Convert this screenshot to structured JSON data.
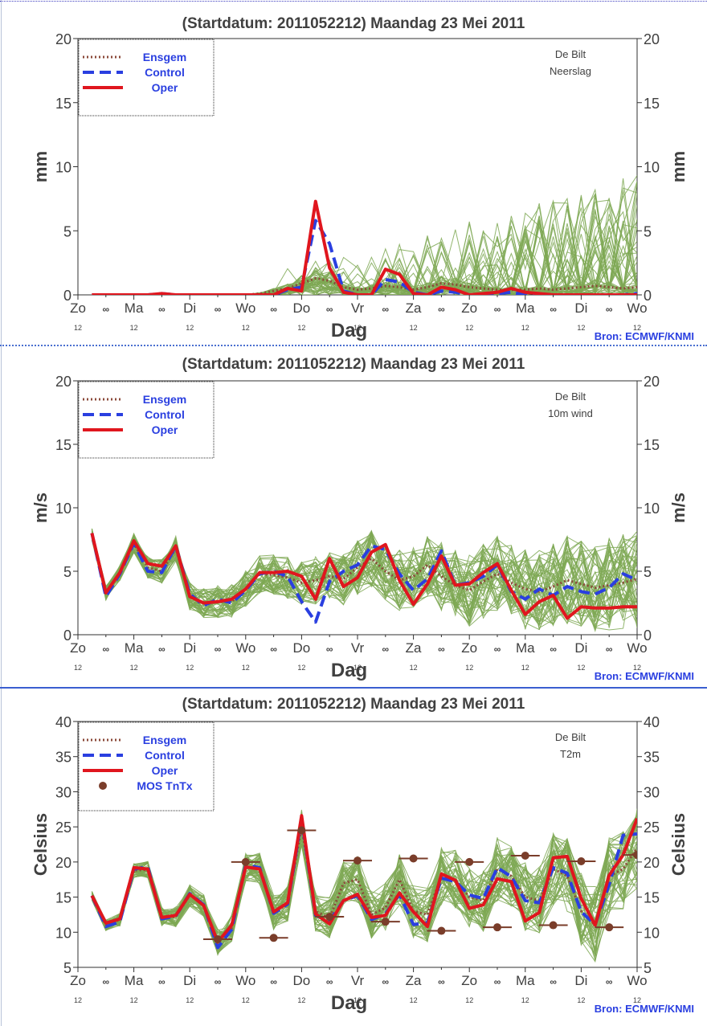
{
  "colors": {
    "ensemble": "#7ea854",
    "ensgem": "#8b4a3a",
    "control": "#2a3fe0",
    "oper": "#e0161e",
    "mos": "#7a3d2a",
    "axis_text": "#404040",
    "source": "#2a3fe0"
  },
  "chart_data": [
    {
      "type": "line",
      "title": "(Startdatum: 2011052212)   Maandag   23 Mei        2011",
      "station": "De Bilt",
      "variable": "Neerslag",
      "xlabel": "Dag",
      "ylabel": "mm",
      "ylim": [
        0,
        20
      ],
      "yticks": [
        0,
        5,
        10,
        15,
        20
      ],
      "source": "Bron: ECMWF/KNMI",
      "legend_position": "top-left",
      "legend": [
        "Ensgem",
        "Control",
        "Oper"
      ],
      "day_labels": [
        "Zo",
        "∞",
        "Ma",
        "∞",
        "Di",
        "∞",
        "Wo",
        "∞",
        "Do",
        "∞",
        "Vr",
        "∞",
        "Za",
        "∞",
        "Zo",
        "∞",
        "Ma",
        "∞",
        "Di",
        "∞",
        "Wo"
      ],
      "hour_labels": [
        "12",
        "12",
        "12",
        "12",
        "12",
        "12",
        "12",
        "12",
        "12",
        "12",
        "12"
      ],
      "x": [
        0.25,
        0.5,
        0.75,
        1.0,
        1.25,
        1.5,
        1.75,
        2.0,
        2.25,
        2.5,
        2.75,
        3.0,
        3.25,
        3.5,
        3.75,
        4.0,
        4.25,
        4.5,
        4.75,
        5.0,
        5.25,
        5.5,
        5.75,
        6.0,
        6.25,
        6.5,
        6.75,
        7.0,
        7.25,
        7.5,
        7.75,
        8.0,
        8.25,
        8.5,
        8.75,
        9.0,
        9.25,
        9.5,
        9.75,
        10.0
      ],
      "series": [
        {
          "name": "Ensgem",
          "style": "dotted",
          "values": [
            0,
            0,
            0,
            0,
            0,
            0.05,
            0,
            0,
            0,
            0,
            0,
            0,
            0.1,
            0.3,
            0.5,
            0.9,
            1.3,
            1.1,
            0.6,
            0.4,
            0.5,
            0.7,
            0.6,
            0.4,
            0.6,
            0.9,
            0.8,
            0.6,
            0.5,
            0.4,
            0.4,
            0.4,
            0.5,
            0.4,
            0.5,
            0.6,
            0.7,
            0.6,
            0.5,
            0.6
          ]
        },
        {
          "name": "Control",
          "style": "dashed",
          "values": [
            0,
            0,
            0,
            0,
            0,
            0.1,
            0,
            0,
            0,
            0,
            0,
            0,
            0,
            0,
            0.4,
            0.6,
            5.8,
            4.0,
            0.3,
            0,
            0,
            1.2,
            1.0,
            0.2,
            0,
            0.3,
            0.2,
            0,
            0,
            0.1,
            0.2,
            0,
            0,
            0,
            0,
            0,
            0,
            0,
            0,
            0.1
          ]
        },
        {
          "name": "Oper",
          "style": "solid",
          "values": [
            0,
            0,
            0,
            0,
            0,
            0.1,
            0,
            0,
            0,
            0,
            0,
            0,
            0,
            0,
            0.5,
            0.3,
            7.3,
            2.1,
            0.2,
            0,
            0,
            2.0,
            1.6,
            0.1,
            0,
            0.6,
            0.4,
            0,
            0.1,
            0.2,
            0.5,
            0.2,
            0.1,
            0,
            0,
            0,
            0,
            0,
            0,
            0
          ]
        }
      ]
    },
    {
      "type": "line",
      "title": "(Startdatum: 2011052212)   Maandag   23 Mei        2011",
      "station": "De Bilt",
      "variable": "10m wind",
      "xlabel": "Dag",
      "ylabel": "m/s",
      "ylim": [
        0,
        20
      ],
      "yticks": [
        0,
        5,
        10,
        15,
        20
      ],
      "source": "Bron: ECMWF/KNMI",
      "legend_position": "top-left",
      "legend": [
        "Ensgem",
        "Control",
        "Oper"
      ],
      "day_labels": [
        "Zo",
        "∞",
        "Ma",
        "∞",
        "Di",
        "∞",
        "Wo",
        "∞",
        "Do",
        "∞",
        "Vr",
        "∞",
        "Za",
        "∞",
        "Zo",
        "∞",
        "Ma",
        "∞",
        "Di",
        "∞",
        "Wo"
      ],
      "hour_labels": [
        "12",
        "12",
        "12",
        "12",
        "12",
        "12",
        "12",
        "12",
        "12",
        "12",
        "12"
      ],
      "x": [
        0.25,
        0.5,
        0.75,
        1.0,
        1.25,
        1.5,
        1.75,
        2.0,
        2.25,
        2.5,
        2.75,
        3.0,
        3.25,
        3.5,
        3.75,
        4.0,
        4.25,
        4.5,
        4.75,
        5.0,
        5.25,
        5.5,
        5.75,
        6.0,
        6.25,
        6.5,
        6.75,
        7.0,
        7.25,
        7.5,
        7.75,
        8.0,
        8.25,
        8.5,
        8.75,
        9.0,
        9.25,
        9.5,
        9.75,
        10.0
      ],
      "series": [
        {
          "name": "Ensgem",
          "style": "dotted",
          "values": [
            7.9,
            3.3,
            4.9,
            7.2,
            5.3,
            5.0,
            6.8,
            3.0,
            2.5,
            2.6,
            2.6,
            3.6,
            4.8,
            4.7,
            4.5,
            4.1,
            4.3,
            4.6,
            4.4,
            5.3,
            6.0,
            5.0,
            4.3,
            4.6,
            5.5,
            4.6,
            3.9,
            3.5,
            4.2,
            4.8,
            4.1,
            3.6,
            3.4,
            3.8,
            4.3,
            4.0,
            3.7,
            3.9,
            4.1,
            4.4
          ]
        },
        {
          "name": "Control",
          "style": "dashed",
          "values": [
            8.0,
            3.0,
            4.8,
            7.2,
            5.0,
            4.9,
            7.0,
            3.2,
            2.3,
            2.8,
            2.5,
            3.5,
            4.8,
            5.0,
            4.6,
            2.6,
            1.0,
            4.2,
            5.0,
            5.5,
            7.0,
            6.7,
            4.8,
            3.5,
            4.4,
            6.6,
            3.9,
            4.1,
            4.6,
            5.5,
            3.4,
            2.8,
            3.6,
            3.1,
            3.8,
            3.4,
            3.2,
            3.7,
            4.8,
            4.3
          ]
        },
        {
          "name": "Oper",
          "style": "solid",
          "values": [
            8.0,
            3.3,
            4.9,
            7.4,
            5.6,
            5.4,
            7.0,
            3.0,
            2.5,
            2.6,
            2.8,
            3.6,
            4.9,
            4.9,
            5.0,
            4.6,
            2.8,
            6.0,
            3.8,
            4.5,
            6.5,
            7.1,
            4.3,
            2.4,
            4.0,
            6.2,
            3.9,
            4.0,
            4.9,
            5.6,
            3.5,
            1.6,
            2.6,
            3.1,
            1.3,
            2.2,
            2.1,
            2.1,
            2.2,
            2.2
          ]
        }
      ]
    },
    {
      "type": "line",
      "title": "(Startdatum: 2011052212)   Maandag   23 Mei        2011",
      "station": "De Bilt",
      "variable": "T2m",
      "xlabel": "Dag",
      "ylabel": "Celsius",
      "ylim": [
        5,
        40
      ],
      "yticks": [
        5,
        10,
        15,
        20,
        25,
        30,
        35,
        40
      ],
      "source": "Bron: ECMWF/KNMI",
      "legend_position": "top-left",
      "legend": [
        "Ensgem",
        "Control",
        "Oper",
        "MOS TnTx"
      ],
      "day_labels": [
        "Zo",
        "∞",
        "Ma",
        "∞",
        "Di",
        "∞",
        "Wo",
        "∞",
        "Do",
        "∞",
        "Vr",
        "∞",
        "Za",
        "∞",
        "Zo",
        "∞",
        "Ma",
        "∞",
        "Di",
        "∞",
        "Wo"
      ],
      "hour_labels": [
        "12",
        "12",
        "12",
        "12",
        "12",
        "12",
        "12",
        "12",
        "12",
        "12",
        "12"
      ],
      "x": [
        0.25,
        0.5,
        0.75,
        1.0,
        1.25,
        1.5,
        1.75,
        2.0,
        2.25,
        2.5,
        2.75,
        3.0,
        3.25,
        3.5,
        3.75,
        4.0,
        4.25,
        4.5,
        4.75,
        5.0,
        5.25,
        5.5,
        5.75,
        6.0,
        6.25,
        6.5,
        6.75,
        7.0,
        7.25,
        7.5,
        7.75,
        8.0,
        8.25,
        8.5,
        8.75,
        9.0,
        9.25,
        9.5,
        9.75,
        10.0
      ],
      "series": [
        {
          "name": "Ensgem",
          "style": "dotted",
          "values": [
            15.2,
            11.0,
            11.8,
            18.8,
            18.9,
            12.2,
            12.2,
            15.3,
            13.8,
            8.6,
            10.6,
            19.3,
            19.0,
            12.8,
            14.0,
            25.0,
            13.0,
            12.0,
            17.0,
            17.5,
            12.5,
            13.5,
            17.5,
            13.0,
            12.5,
            18.0,
            17.5,
            15.0,
            14.5,
            19.0,
            18.0,
            15.0,
            14.5,
            19.0,
            18.0,
            13.0,
            11.0,
            18.0,
            19.0,
            22.0
          ]
        },
        {
          "name": "Control",
          "style": "dashed",
          "values": [
            15.2,
            10.8,
            11.5,
            19.0,
            19.3,
            11.9,
            12.3,
            15.5,
            13.9,
            7.8,
            10.4,
            19.6,
            19.2,
            12.7,
            14.0,
            26.2,
            12.4,
            11.6,
            14.5,
            15.2,
            11.8,
            12.6,
            15.4,
            11.1,
            11.3,
            17.7,
            17.2,
            15.3,
            14.8,
            19.2,
            17.9,
            14.5,
            14.2,
            19.2,
            18.4,
            12.9,
            11.1,
            16.8,
            23.8,
            24.0
          ]
        },
        {
          "name": "Oper",
          "style": "solid",
          "values": [
            15.2,
            11.3,
            11.9,
            19.2,
            19.0,
            12.1,
            12.4,
            15.4,
            13.8,
            8.6,
            11.0,
            19.3,
            19.0,
            12.9,
            14.2,
            26.6,
            12.6,
            11.2,
            14.5,
            15.4,
            12.1,
            12.4,
            15.6,
            12.9,
            10.8,
            18.3,
            17.4,
            13.4,
            13.9,
            17.6,
            17.2,
            11.6,
            12.8,
            20.6,
            20.8,
            14.8,
            11.0,
            18.1,
            21.0,
            26.2
          ]
        }
      ],
      "mos_tntx": [
        {
          "x": 2.5,
          "value": 9.0
        },
        {
          "x": 3.0,
          "value": 20.0
        },
        {
          "x": 3.5,
          "value": 9.2
        },
        {
          "x": 4.0,
          "value": 24.5
        },
        {
          "x": 4.5,
          "value": 12.2
        },
        {
          "x": 5.0,
          "value": 20.2
        },
        {
          "x": 5.5,
          "value": 11.5
        },
        {
          "x": 6.0,
          "value": 20.5
        },
        {
          "x": 6.5,
          "value": 10.2
        },
        {
          "x": 7.0,
          "value": 20.0
        },
        {
          "x": 7.5,
          "value": 10.7
        },
        {
          "x": 8.0,
          "value": 20.9
        },
        {
          "x": 8.5,
          "value": 11.0
        },
        {
          "x": 9.0,
          "value": 20.1
        },
        {
          "x": 9.5,
          "value": 10.7
        },
        {
          "x": 10.0,
          "value": 21.0
        }
      ]
    }
  ]
}
